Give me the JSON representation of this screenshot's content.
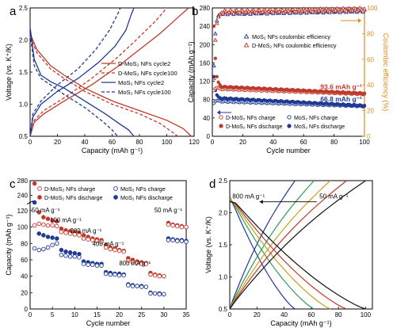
{
  "chart_data": [
    {
      "id": "a",
      "type": "line",
      "panel_label": "a",
      "xlabel": "Capacity (mAh g⁻¹)",
      "ylabel": "Voltage (vs. K⁺/K)",
      "xlim": [
        0,
        120
      ],
      "ylim": [
        0.5,
        2.5
      ],
      "xticks": [
        0,
        20,
        40,
        60,
        80,
        100,
        120
      ],
      "yticks": [
        0.5,
        1.0,
        1.5,
        2.0,
        2.5
      ],
      "xtick_labels": [
        "0",
        "20",
        "40",
        "60",
        "80",
        "100",
        "120"
      ],
      "ytick_labels": [
        "0.5",
        "1.0",
        "1.5",
        "2.0",
        "2.5"
      ],
      "legend_position": "right",
      "series": [
        {
          "name": "D-MoS₂ NFs cycle2",
          "color": "#c0392b",
          "dash": "solid",
          "discharge": [
            [
              0,
              2.1
            ],
            [
              5,
              1.85
            ],
            [
              15,
              1.6
            ],
            [
              25,
              1.45
            ],
            [
              40,
              1.25
            ],
            [
              60,
              1.05
            ],
            [
              80,
              0.9
            ],
            [
              100,
              0.75
            ],
            [
              112,
              0.62
            ],
            [
              118,
              0.5
            ]
          ],
          "charge": [
            [
              0,
              0.5
            ],
            [
              3,
              0.72
            ],
            [
              10,
              0.85
            ],
            [
              25,
              1.05
            ],
            [
              45,
              1.3
            ],
            [
              65,
              1.6
            ],
            [
              80,
              1.85
            ],
            [
              95,
              2.1
            ],
            [
              108,
              2.35
            ],
            [
              116,
              2.5
            ]
          ]
        },
        {
          "name": "D-MoS₂ NFs cycle100",
          "color": "#c0392b",
          "dash": "dashed",
          "discharge": [
            [
              0,
              2.05
            ],
            [
              5,
              1.8
            ],
            [
              15,
              1.55
            ],
            [
              25,
              1.4
            ],
            [
              40,
              1.2
            ],
            [
              60,
              1.0
            ],
            [
              80,
              0.85
            ],
            [
              95,
              0.7
            ],
            [
              105,
              0.55
            ],
            [
              108,
              0.5
            ]
          ],
          "charge": [
            [
              0,
              0.5
            ],
            [
              3,
              0.75
            ],
            [
              10,
              0.9
            ],
            [
              25,
              1.1
            ],
            [
              45,
              1.4
            ],
            [
              65,
              1.75
            ],
            [
              80,
              2.05
            ],
            [
              92,
              2.3
            ],
            [
              100,
              2.5
            ]
          ]
        },
        {
          "name": "MoS₂ NFs cycle2",
          "color": "#1f3a93",
          "dash": "solid",
          "discharge": [
            [
              0,
              2.2
            ],
            [
              3,
              1.7
            ],
            [
              8,
              1.45
            ],
            [
              15,
              1.35
            ],
            [
              25,
              1.25
            ],
            [
              40,
              1.05
            ],
            [
              55,
              0.85
            ],
            [
              65,
              0.7
            ],
            [
              72,
              0.6
            ],
            [
              76,
              0.5
            ]
          ],
          "charge": [
            [
              0,
              0.5
            ],
            [
              2,
              0.8
            ],
            [
              8,
              1.0
            ],
            [
              20,
              1.2
            ],
            [
              35,
              1.4
            ],
            [
              50,
              1.65
            ],
            [
              62,
              1.9
            ],
            [
              70,
              2.15
            ],
            [
              74,
              2.4
            ],
            [
              76,
              2.5
            ]
          ]
        },
        {
          "name": "MoS₂ NFs cycle100",
          "color": "#1f3a93",
          "dash": "dashed",
          "discharge": [
            [
              0,
              2.1
            ],
            [
              3,
              1.6
            ],
            [
              8,
              1.4
            ],
            [
              15,
              1.3
            ],
            [
              25,
              1.15
            ],
            [
              40,
              0.95
            ],
            [
              52,
              0.75
            ],
            [
              60,
              0.6
            ],
            [
              64,
              0.5
            ]
          ],
          "charge": [
            [
              0,
              0.5
            ],
            [
              2,
              0.85
            ],
            [
              8,
              1.05
            ],
            [
              20,
              1.3
            ],
            [
              35,
              1.55
            ],
            [
              48,
              1.85
            ],
            [
              58,
              2.15
            ],
            [
              64,
              2.4
            ],
            [
              66,
              2.5
            ]
          ]
        }
      ]
    },
    {
      "id": "b",
      "type": "scatter",
      "panel_label": "b",
      "xlabel": "Cycle number",
      "ylabel": "Capacity (mAh g⁻¹)",
      "y2label": "Coulombic efficiency (%)",
      "xlim": [
        0,
        100
      ],
      "ylim": [
        0,
        280
      ],
      "y2lim": [
        0,
        100
      ],
      "xticks": [
        0,
        20,
        40,
        60,
        80,
        100
      ],
      "yticks": [
        0,
        40,
        80,
        120,
        160,
        200,
        240,
        280
      ],
      "y2ticks": [
        0,
        20,
        40,
        60,
        80,
        100
      ],
      "xtick_labels": [
        "0",
        "20",
        "40",
        "60",
        "80",
        "100"
      ],
      "ytick_labels": [
        "0",
        "40",
        "80",
        "120",
        "160",
        "200",
        "240",
        "280"
      ],
      "y2tick_labels": [
        "0",
        "20",
        "40",
        "60",
        "80",
        "100"
      ],
      "legend_top": [
        {
          "name": "MoS₂ NFs coulombic efficiency",
          "color": "#1f3a93",
          "marker": "triangle-open"
        },
        {
          "name": "D-MoS₂ NFs coulombic efficiency",
          "color": "#c0392b",
          "marker": "triangle-open"
        }
      ],
      "legend_bottom": [
        {
          "name": "D-MoS₂ NFs charge",
          "color": "#c0392b",
          "marker": "circle-open"
        },
        {
          "name": "MoS₂ NFs charge",
          "color": "#1f3a93",
          "marker": "circle-open"
        },
        {
          "name": "D-MoS₂ NFs discharge",
          "color": "#c0392b",
          "marker": "circle-filled"
        },
        {
          "name": "MoS₂ NFs discharge",
          "color": "#1f3a93",
          "marker": "circle-filled"
        }
      ],
      "annotations": [
        {
          "text": "93.6 mAh g⁻¹",
          "color": "#c0392b",
          "x": 100,
          "y": 94
        },
        {
          "text": "66.8 mAh g⁻¹",
          "color": "#1f3a93",
          "x": 100,
          "y": 67
        }
      ],
      "series": {
        "d_discharge": {
          "start": [
            [
              1,
              240
            ],
            [
              2,
              170
            ],
            [
              3,
              130
            ],
            [
              4,
              118
            ],
            [
              5,
              112
            ]
          ],
          "plateau_from": 108,
          "plateau_to": 93.6
        },
        "d_charge": {
          "start": [
            [
              1,
              100
            ],
            [
              2,
              104
            ],
            [
              3,
              106
            ],
            [
              4,
              105
            ],
            [
              5,
              104
            ]
          ],
          "plateau_from": 103,
          "plateau_to": 92
        },
        "m_discharge": {
          "start": [
            [
              1,
              130
            ],
            [
              2,
              100
            ],
            [
              3,
              90
            ],
            [
              4,
              86
            ],
            [
              5,
              84
            ]
          ],
          "plateau_from": 83,
          "plateau_to": 66.8
        },
        "m_charge": {
          "start": [
            [
              1,
              72
            ],
            [
              2,
              76
            ],
            [
              3,
              78
            ],
            [
              4,
              78
            ],
            [
              5,
              77
            ]
          ],
          "plateau_from": 76,
          "plateau_to": 65.5
        },
        "d_ce": {
          "start": [
            [
              1,
              45
            ],
            [
              2,
              75
            ],
            [
              3,
              88
            ],
            [
              4,
              93
            ],
            [
              5,
              95
            ]
          ],
          "plateau_from": 97,
          "plateau_to": 99
        },
        "m_ce": {
          "start": [
            [
              1,
              55
            ],
            [
              2,
              80
            ],
            [
              3,
              90
            ],
            [
              4,
              94
            ],
            [
              5,
              95
            ]
          ],
          "plateau_from": 96,
          "plateau_to": 98
        }
      }
    },
    {
      "id": "c",
      "type": "scatter",
      "panel_label": "c",
      "xlabel": "Cycle number",
      "ylabel": "Capacity (mAh g⁻¹)",
      "xlim": [
        0,
        35
      ],
      "ylim": [
        0,
        280
      ],
      "xticks": [
        0,
        5,
        10,
        15,
        20,
        25,
        30,
        35
      ],
      "yticks": [
        0,
        20,
        40,
        60,
        80,
        100,
        120,
        240,
        280
      ],
      "xtick_labels": [
        "0",
        "5",
        "10",
        "15",
        "20",
        "25",
        "30",
        "35"
      ],
      "ytick_labels": [
        "0",
        "20",
        "40",
        "60",
        "80",
        "100",
        "120",
        "240",
        "280"
      ],
      "legend": [
        {
          "name": "D-MoS₂ NFs charge",
          "color": "#c0392b",
          "marker": "circle-open"
        },
        {
          "name": "MoS₂ NFs charge",
          "color": "#1f3a93",
          "marker": "circle-open"
        },
        {
          "name": "D-MoS₂ NFs discharge",
          "color": "#c0392b",
          "marker": "circle-filled"
        },
        {
          "name": "MoS₂ NFs discharge",
          "color": "#1f3a93",
          "marker": "circle-filled"
        }
      ],
      "rate_labels": [
        {
          "text": "50 mA g⁻¹",
          "x": 3.5,
          "y": 118
        },
        {
          "text": "100 mA g⁻¹",
          "x": 8,
          "y": 106
        },
        {
          "text": "200 mA g⁻¹",
          "x": 12.5,
          "y": 93
        },
        {
          "text": "400 mA g⁻¹",
          "x": 17.5,
          "y": 77
        },
        {
          "text": "800 mA g⁻¹",
          "x": 23.5,
          "y": 53
        },
        {
          "text": "50 mA g⁻¹",
          "x": 31,
          "y": 118
        }
      ],
      "series": {
        "d_discharge": [
          272,
          118,
          112,
          110,
          108,
          107,
          98,
          96,
          95,
          94,
          93,
          90,
          88,
          86,
          85,
          84,
          78,
          75,
          74,
          72,
          71,
          62,
          60,
          58,
          57,
          56,
          44,
          42,
          41,
          40,
          105,
          103,
          102,
          101,
          100
        ],
        "d_charge": [
          102,
          104,
          103,
          102,
          102,
          101,
          94,
          93,
          92,
          91,
          90,
          86,
          85,
          84,
          83,
          82,
          75,
          73,
          72,
          71,
          70,
          59,
          57,
          56,
          55,
          55,
          42,
          41,
          40,
          40,
          103,
          102,
          101,
          100,
          100
        ],
        "m_discharge": [
          220,
          92,
          90,
          88,
          87,
          86,
          72,
          70,
          69,
          68,
          67,
          58,
          57,
          56,
          55,
          55,
          45,
          44,
          43,
          43,
          42,
          30,
          29,
          28,
          28,
          27,
          20,
          19,
          19,
          18,
          86,
          85,
          84,
          84,
          83
        ],
        "m_charge": [
          74,
          72,
          73,
          75,
          78,
          80,
          66,
          65,
          64,
          64,
          63,
          55,
          54,
          54,
          53,
          53,
          43,
          42,
          42,
          41,
          41,
          29,
          28,
          28,
          27,
          27,
          19,
          19,
          18,
          18,
          84,
          84,
          83,
          83,
          82
        ]
      }
    },
    {
      "id": "d",
      "type": "line",
      "panel_label": "d",
      "xlabel": "Capacity (mAh g⁻¹)",
      "ylabel": "Voltage (vs. K⁺/K)",
      "xlim": [
        0,
        105
      ],
      "ylim": [
        0.5,
        2.5
      ],
      "xticks": [
        0,
        20,
        40,
        60,
        80,
        100
      ],
      "yticks": [
        0.5,
        1.0,
        1.5,
        2.0,
        2.5
      ],
      "xtick_labels": [
        "0",
        "20",
        "40",
        "60",
        "80",
        "100"
      ],
      "ytick_labels": [
        "0.5",
        "1.0",
        "1.5",
        "2.0",
        "2.5"
      ],
      "annotations": [
        {
          "text": "800 mA g⁻¹",
          "x": 2,
          "y": 2.22
        },
        {
          "text": "50 mA g⁻¹",
          "x": 66,
          "y": 2.22
        }
      ],
      "series": [
        {
          "color": "#1f3a93",
          "capacity": 48
        },
        {
          "color": "#2c9c5a",
          "capacity": 62
        },
        {
          "color": "#c7a21b",
          "capacity": 74
        },
        {
          "color": "#c0392b",
          "capacity": 86
        },
        {
          "color": "#111111",
          "capacity": 100
        }
      ]
    }
  ]
}
